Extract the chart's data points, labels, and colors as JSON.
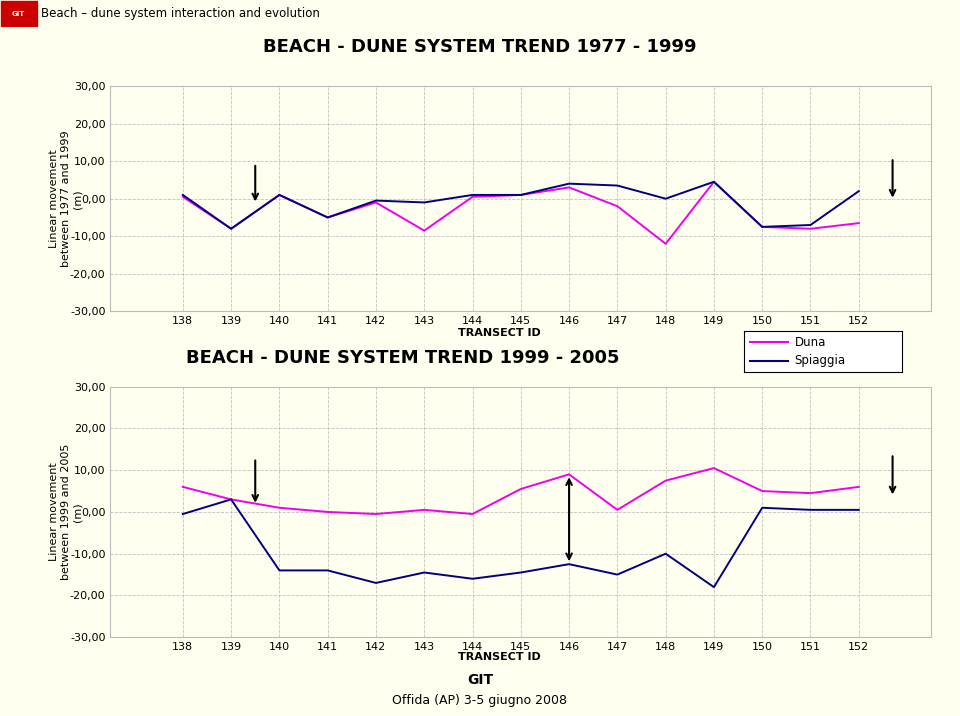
{
  "title1": "BEACH - DUNE SYSTEM TREND 1977 - 1999",
  "title2": "BEACH - DUNE SYSTEM TREND 1999 - 2005",
  "xlabel": "TRANSECT ID",
  "ylabel1": "Linear movement\nbetween 1977 and 1999\n(m)",
  "ylabel2": "Linear movement\nbetween 1999 and 2005\n(m)",
  "transects": [
    138,
    139,
    140,
    141,
    142,
    143,
    144,
    145,
    146,
    147,
    148,
    149,
    150,
    151,
    152
  ],
  "duna1": [
    0.5,
    -8.0,
    1.0,
    -5.0,
    -1.0,
    -8.5,
    0.5,
    1.0,
    3.0,
    -2.0,
    -12.0,
    4.5,
    -7.5,
    -8.0,
    -6.5
  ],
  "spiaggia1": [
    1.0,
    -8.0,
    1.0,
    -5.0,
    -0.5,
    -1.0,
    1.0,
    1.0,
    4.0,
    3.5,
    0.0,
    4.5,
    -7.5,
    -7.0,
    2.0
  ],
  "duna2": [
    6.0,
    3.0,
    1.0,
    0.0,
    -0.5,
    0.5,
    -0.5,
    5.5,
    9.0,
    0.5,
    7.5,
    10.5,
    5.0,
    4.5,
    6.0
  ],
  "spiaggia2": [
    -0.5,
    3.0,
    -14.0,
    -14.0,
    -17.0,
    -14.5,
    -16.0,
    -14.5,
    -12.5,
    -15.0,
    -10.0,
    -18.0,
    1.0,
    0.5,
    0.5
  ],
  "duna_color": "#EE00EE",
  "spiaggia_color": "#000080",
  "bg_color": "#FFFFF0",
  "plot_bg_color": "#FFFFF0",
  "ylim": [
    -30,
    30
  ],
  "yticks": [
    -30,
    -20,
    -10,
    0,
    10,
    20,
    30
  ],
  "header_bg": "#C8C8C8",
  "header_text": "Beach – dune system interaction and evolution",
  "footer_text1": "GIT",
  "footer_text2": "Offida (AP) 3-5 giugno 2008",
  "legend_labels": [
    "Duna",
    "Spiaggia"
  ]
}
